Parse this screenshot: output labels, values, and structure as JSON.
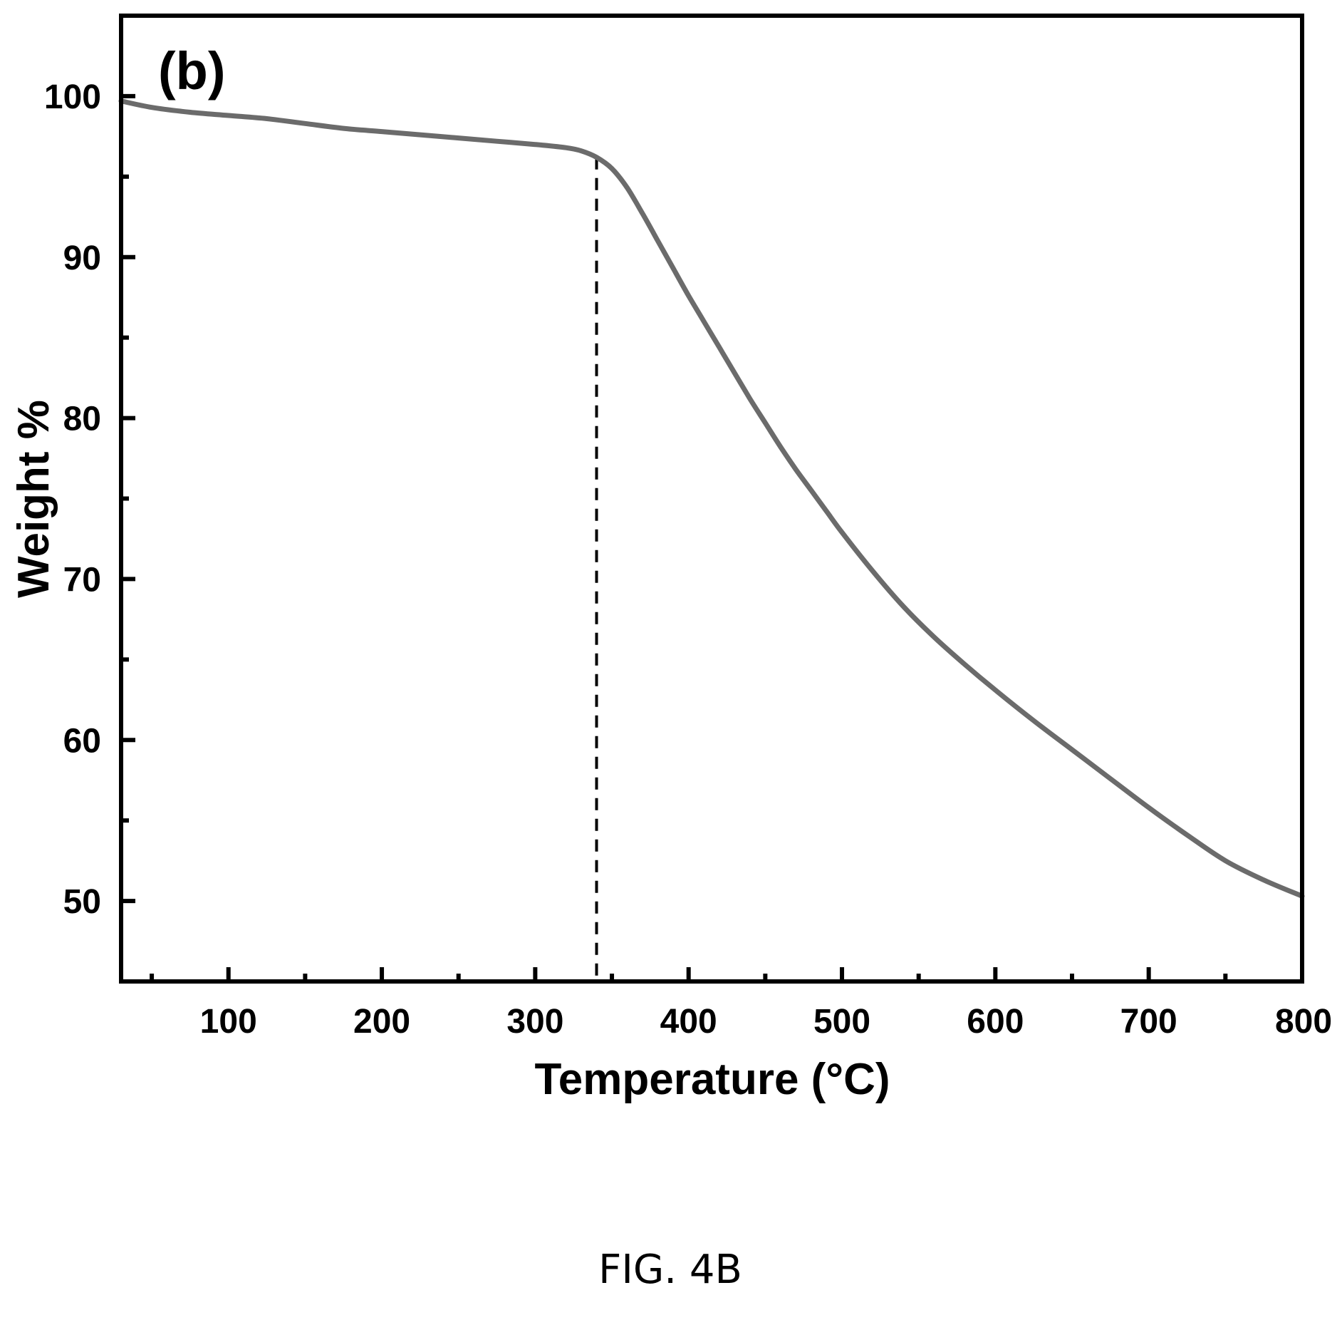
{
  "chart_data": {
    "type": "line",
    "panel_label": "(b)",
    "xlabel": "Temperature (°C)",
    "ylabel": "Weight %",
    "xlim": [
      30,
      800
    ],
    "ylim": [
      45,
      105
    ],
    "x_ticks": [
      100,
      200,
      300,
      400,
      500,
      600,
      700,
      800
    ],
    "x_minor_ticks": [
      50,
      150,
      250,
      350,
      450,
      550,
      650,
      750
    ],
    "y_ticks": [
      50,
      60,
      70,
      80,
      90,
      100
    ],
    "y_minor_ticks": [
      55,
      65,
      75,
      85,
      95
    ],
    "grid": false,
    "marker_line_x": 340,
    "line_color": "#6b6b6b",
    "series": [
      {
        "x": [
          30,
          50,
          75,
          100,
          125,
          150,
          175,
          200,
          225,
          250,
          275,
          300,
          320,
          330,
          340,
          350,
          360,
          370,
          380,
          390,
          400,
          410,
          420,
          430,
          440,
          450,
          460,
          470,
          480,
          490,
          500,
          520,
          540,
          560,
          580,
          600,
          625,
          650,
          675,
          700,
          725,
          750,
          775,
          800
        ],
        "y": [
          99.7,
          99.3,
          99.0,
          98.8,
          98.6,
          98.3,
          98.0,
          97.8,
          97.6,
          97.4,
          97.2,
          97.0,
          96.8,
          96.6,
          96.2,
          95.5,
          94.3,
          92.7,
          91.0,
          89.3,
          87.6,
          86.0,
          84.4,
          82.8,
          81.2,
          79.7,
          78.2,
          76.8,
          75.5,
          74.2,
          72.9,
          70.5,
          68.3,
          66.4,
          64.7,
          63.1,
          61.2,
          59.4,
          57.6,
          55.8,
          54.1,
          52.5,
          51.3,
          50.3
        ]
      }
    ]
  },
  "caption": "FIG. 4B"
}
